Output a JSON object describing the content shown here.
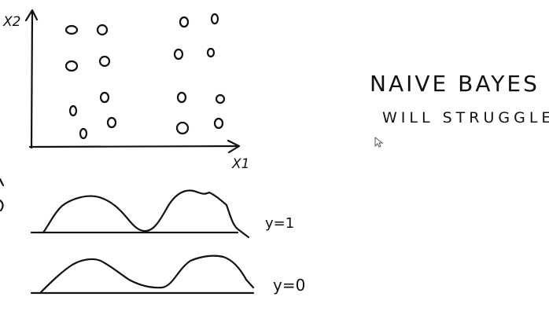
{
  "scatter": {
    "x_axis_label": "X1",
    "y_axis_label": "X2",
    "legend": {
      "open_circle": "y = 0",
      "filled_circle": "y = 1"
    }
  },
  "note": {
    "line1": "NAIVE BAYES",
    "line2": "WILL STRUGGLE"
  },
  "distributions": [
    {
      "label": "y=1"
    },
    {
      "label": "y=0"
    }
  ],
  "colors": {
    "ink": "#111111",
    "background": "#ffffff"
  },
  "icons": {
    "cursor": "mouse-pointer-icon"
  }
}
